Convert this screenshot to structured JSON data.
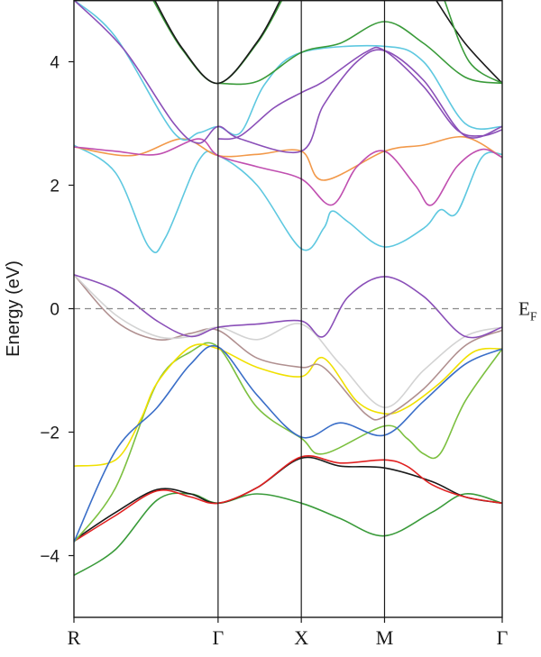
{
  "chart_data": {
    "type": "line",
    "title": "",
    "ylabel": "Energy (eV)",
    "xlabel": "",
    "ylim": [
      -5,
      5
    ],
    "y_ticks": [
      -4,
      -2,
      0,
      2,
      4
    ],
    "y_tick_labels": [
      "−4",
      "−2",
      "0",
      "2",
      "4"
    ],
    "k_points": [
      {
        "label": "R",
        "pos": 0
      },
      {
        "label": "Γ",
        "pos": 1.732
      },
      {
        "label": "X",
        "pos": 2.732
      },
      {
        "label": "M",
        "pos": 3.732
      },
      {
        "label": "Γ",
        "pos": 5.146
      }
    ],
    "fermi": {
      "value": 0,
      "label": "E",
      "sub": "F"
    },
    "grid": false,
    "series": [
      {
        "color": "#3a9b3a",
        "points": [
          [
            0,
            -4.32
          ],
          [
            0.5,
            -3.9
          ],
          [
            1.0,
            -3.1
          ],
          [
            1.4,
            -3.0
          ],
          [
            1.732,
            -3.15
          ],
          [
            2.2,
            -3.0
          ],
          [
            2.732,
            -3.15
          ],
          [
            3.2,
            -3.4
          ],
          [
            3.732,
            -3.68
          ],
          [
            4.3,
            -3.3
          ],
          [
            4.7,
            -3.0
          ],
          [
            5.146,
            -3.15
          ]
        ]
      },
      {
        "color": "#1a1a1a",
        "points": [
          [
            0,
            -3.75
          ],
          [
            0.5,
            -3.3
          ],
          [
            1.0,
            -2.93
          ],
          [
            1.4,
            -3.0
          ],
          [
            1.732,
            -3.15
          ],
          [
            2.2,
            -2.9
          ],
          [
            2.732,
            -2.42
          ],
          [
            3.2,
            -2.55
          ],
          [
            3.732,
            -2.58
          ],
          [
            4.3,
            -2.8
          ],
          [
            4.7,
            -3.05
          ],
          [
            5.146,
            -3.15
          ]
        ]
      },
      {
        "color": "#e02020",
        "points": [
          [
            0,
            -3.77
          ],
          [
            0.5,
            -3.35
          ],
          [
            1.0,
            -2.95
          ],
          [
            1.4,
            -3.05
          ],
          [
            1.732,
            -3.15
          ],
          [
            2.2,
            -2.9
          ],
          [
            2.732,
            -2.4
          ],
          [
            3.2,
            -2.5
          ],
          [
            3.732,
            -2.45
          ],
          [
            4.0,
            -2.55
          ],
          [
            4.3,
            -2.85
          ],
          [
            4.7,
            -3.05
          ],
          [
            5.146,
            -3.15
          ]
        ]
      },
      {
        "color": "#7cc040",
        "points": [
          [
            0,
            -3.78
          ],
          [
            0.5,
            -2.9
          ],
          [
            1.0,
            -1.2
          ],
          [
            1.4,
            -0.7
          ],
          [
            1.732,
            -0.62
          ],
          [
            2.2,
            -1.6
          ],
          [
            2.732,
            -2.1
          ],
          [
            3.0,
            -2.35
          ],
          [
            3.732,
            -1.9
          ],
          [
            4.0,
            -2.1
          ],
          [
            4.2,
            -2.35
          ],
          [
            4.4,
            -2.35
          ],
          [
            4.7,
            -1.5
          ],
          [
            5.146,
            -0.65
          ]
        ]
      },
      {
        "color": "#f0e000",
        "points": [
          [
            0,
            -2.55
          ],
          [
            0.5,
            -2.45
          ],
          [
            0.8,
            -1.8
          ],
          [
            1.0,
            -1.2
          ],
          [
            1.4,
            -0.62
          ],
          [
            1.732,
            -0.65
          ],
          [
            2.2,
            -0.95
          ],
          [
            2.732,
            -1.1
          ],
          [
            3.0,
            -0.8
          ],
          [
            3.4,
            -1.5
          ],
          [
            3.732,
            -1.7
          ],
          [
            4.0,
            -1.6
          ],
          [
            4.4,
            -1.2
          ],
          [
            4.8,
            -0.7
          ],
          [
            5.146,
            -0.65
          ]
        ]
      },
      {
        "color": "#3a6ec8",
        "points": [
          [
            0,
            -3.78
          ],
          [
            0.5,
            -2.3
          ],
          [
            1.0,
            -1.6
          ],
          [
            1.4,
            -0.9
          ],
          [
            1.732,
            -0.62
          ],
          [
            2.2,
            -1.4
          ],
          [
            2.732,
            -2.08
          ],
          [
            3.2,
            -1.85
          ],
          [
            3.732,
            -2.05
          ],
          [
            4.2,
            -1.5
          ],
          [
            4.7,
            -0.9
          ],
          [
            5.146,
            -0.65
          ]
        ]
      },
      {
        "color": "#b09090",
        "points": [
          [
            0,
            0.55
          ],
          [
            0.5,
            -0.2
          ],
          [
            1.0,
            -0.5
          ],
          [
            1.4,
            -0.4
          ],
          [
            1.732,
            -0.35
          ],
          [
            2.2,
            -0.8
          ],
          [
            2.732,
            -0.95
          ],
          [
            3.0,
            -0.95
          ],
          [
            3.5,
            -1.7
          ],
          [
            3.732,
            -1.75
          ],
          [
            4.2,
            -1.3
          ],
          [
            4.7,
            -0.6
          ],
          [
            5.146,
            -0.35
          ]
        ]
      },
      {
        "color": "#d3d3d3",
        "points": [
          [
            0,
            0.55
          ],
          [
            0.5,
            -0.1
          ],
          [
            1.0,
            -0.45
          ],
          [
            1.4,
            -0.45
          ],
          [
            1.732,
            -0.3
          ],
          [
            2.2,
            -0.5
          ],
          [
            2.732,
            -0.25
          ],
          [
            3.2,
            -0.9
          ],
          [
            3.732,
            -1.6
          ],
          [
            4.2,
            -1.0
          ],
          [
            4.7,
            -0.45
          ],
          [
            5.146,
            -0.3
          ]
        ]
      },
      {
        "color": "#8a4fb8",
        "points": [
          [
            0,
            0.55
          ],
          [
            0.5,
            0.3
          ],
          [
            1.0,
            -0.2
          ],
          [
            1.4,
            -0.45
          ],
          [
            1.732,
            -0.3
          ],
          [
            2.2,
            -0.25
          ],
          [
            2.732,
            -0.2
          ],
          [
            3.0,
            -0.45
          ],
          [
            3.3,
            0.2
          ],
          [
            3.732,
            0.52
          ],
          [
            4.2,
            0.2
          ],
          [
            4.7,
            -0.45
          ],
          [
            5.146,
            -0.3
          ]
        ]
      },
      {
        "color": "#5ec8e0",
        "points": [
          [
            0,
            2.65
          ],
          [
            0.5,
            2.2
          ],
          [
            0.9,
            1.0
          ],
          [
            1.1,
            1.15
          ],
          [
            1.5,
            2.4
          ],
          [
            1.732,
            2.48
          ],
          [
            2.2,
            2.0
          ],
          [
            2.732,
            0.97
          ],
          [
            3.0,
            1.3
          ],
          [
            3.1,
            1.58
          ],
          [
            3.3,
            1.4
          ],
          [
            3.732,
            1.0
          ],
          [
            4.2,
            1.3
          ],
          [
            4.4,
            1.6
          ],
          [
            4.6,
            1.55
          ],
          [
            4.9,
            2.45
          ],
          [
            5.146,
            2.5
          ]
        ]
      },
      {
        "color": "#f2994a",
        "points": [
          [
            0,
            2.62
          ],
          [
            0.7,
            2.48
          ],
          [
            1.3,
            2.75
          ],
          [
            1.732,
            2.48
          ],
          [
            2.2,
            2.5
          ],
          [
            2.732,
            2.55
          ],
          [
            3.0,
            2.08
          ],
          [
            3.732,
            2.55
          ],
          [
            4.2,
            2.65
          ],
          [
            4.7,
            2.78
          ],
          [
            5.146,
            2.45
          ]
        ]
      },
      {
        "color": "#c04fb0",
        "points": [
          [
            0,
            2.62
          ],
          [
            0.5,
            2.55
          ],
          [
            1.0,
            2.5
          ],
          [
            1.5,
            2.75
          ],
          [
            1.732,
            2.48
          ],
          [
            2.2,
            2.3
          ],
          [
            2.732,
            2.1
          ],
          [
            3.1,
            1.68
          ],
          [
            3.4,
            2.3
          ],
          [
            3.732,
            2.55
          ],
          [
            4.1,
            2.0
          ],
          [
            4.3,
            1.68
          ],
          [
            4.6,
            2.3
          ],
          [
            4.9,
            2.58
          ],
          [
            5.146,
            2.45
          ]
        ]
      },
      {
        "color": "#5ec8e0",
        "points": [
          [
            0,
            5.0
          ],
          [
            0.5,
            4.4
          ],
          [
            1.2,
            2.85
          ],
          [
            1.5,
            2.85
          ],
          [
            1.732,
            2.95
          ],
          [
            2.0,
            2.85
          ],
          [
            2.3,
            3.65
          ],
          [
            2.732,
            4.15
          ],
          [
            3.732,
            4.25
          ],
          [
            4.2,
            4.0
          ],
          [
            4.7,
            3.0
          ],
          [
            5.146,
            2.95
          ]
        ]
      },
      {
        "color": "#8a4fb8",
        "points": [
          [
            0,
            5.0
          ],
          [
            0.6,
            4.2
          ],
          [
            1.2,
            3.0
          ],
          [
            1.5,
            2.68
          ],
          [
            1.732,
            2.95
          ],
          [
            2.0,
            2.75
          ],
          [
            2.732,
            2.55
          ],
          [
            3.0,
            3.3
          ],
          [
            3.4,
            4.0
          ],
          [
            3.732,
            4.18
          ],
          [
            4.2,
            3.7
          ],
          [
            4.7,
            2.8
          ],
          [
            5.146,
            2.95
          ]
        ]
      },
      {
        "color": "#8a4fb8",
        "points": [
          [
            1.732,
            2.75
          ],
          [
            2.0,
            2.8
          ],
          [
            2.4,
            3.25
          ],
          [
            2.732,
            3.5
          ],
          [
            3.0,
            3.68
          ],
          [
            3.5,
            4.15
          ],
          [
            3.732,
            4.18
          ],
          [
            4.2,
            3.6
          ],
          [
            4.6,
            2.9
          ],
          [
            4.9,
            2.8
          ],
          [
            5.146,
            2.9
          ]
        ]
      },
      {
        "color": "#3a9b3a",
        "points": [
          [
            1.732,
            3.65
          ],
          [
            2.2,
            3.68
          ],
          [
            2.732,
            4.15
          ],
          [
            3.2,
            4.3
          ],
          [
            3.732,
            4.65
          ],
          [
            4.2,
            4.3
          ],
          [
            4.7,
            3.75
          ],
          [
            5.146,
            3.65
          ]
        ]
      },
      {
        "color": "#3a9b3a",
        "points": [
          [
            0.95,
            5.0
          ],
          [
            1.3,
            4.2
          ],
          [
            1.732,
            3.65
          ],
          [
            2.2,
            4.3
          ],
          [
            2.5,
            5.0
          ]
        ]
      },
      {
        "color": "#1a1a1a",
        "points": [
          [
            0.97,
            5.0
          ],
          [
            1.3,
            4.22
          ],
          [
            1.732,
            3.65
          ],
          [
            2.2,
            4.32
          ],
          [
            2.48,
            5.0
          ]
        ]
      },
      {
        "color": "#1a1a1a",
        "points": [
          [
            4.35,
            5.0
          ],
          [
            4.7,
            4.3
          ],
          [
            5.146,
            3.65
          ]
        ]
      },
      {
        "color": "#3a9b3a",
        "points": [
          [
            4.45,
            5.0
          ],
          [
            4.75,
            4.0
          ],
          [
            5.146,
            3.65
          ]
        ]
      }
    ]
  }
}
